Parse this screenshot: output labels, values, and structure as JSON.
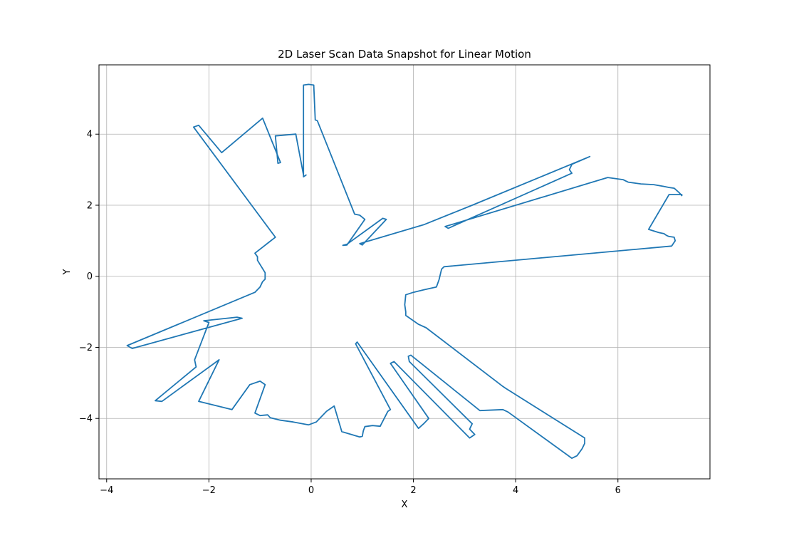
{
  "chart_data": {
    "type": "line",
    "title": "2D Laser Scan Data Snapshot for Linear Motion",
    "xlabel": "X",
    "ylabel": "Y",
    "xlim": [
      -4.15,
      7.8
    ],
    "ylim": [
      -5.7,
      5.95
    ],
    "xticks": [
      -4,
      -2,
      0,
      2,
      4,
      6
    ],
    "yticks": [
      -4,
      -2,
      0,
      2,
      4
    ],
    "grid": true,
    "series": [
      {
        "color": "#1f77b4",
        "points": [
          [
            -0.1,
            2.85
          ],
          [
            -0.15,
            2.8
          ],
          [
            -0.15,
            5.38
          ],
          [
            -0.05,
            5.4
          ],
          [
            0.05,
            5.38
          ],
          [
            0.08,
            4.4
          ],
          [
            0.12,
            4.38
          ],
          [
            0.85,
            1.75
          ],
          [
            0.95,
            1.72
          ],
          [
            1.05,
            1.6
          ],
          [
            0.7,
            0.88
          ],
          [
            0.62,
            0.87
          ],
          [
            0.7,
            0.9
          ],
          [
            1.4,
            1.63
          ],
          [
            1.47,
            1.6
          ],
          [
            1.0,
            0.88
          ],
          [
            0.95,
            0.92
          ],
          [
            2.2,
            1.45
          ],
          [
            3.15,
            2.0
          ],
          [
            5.45,
            3.37
          ],
          [
            5.1,
            3.15
          ],
          [
            5.05,
            3.0
          ],
          [
            5.1,
            2.9
          ],
          [
            2.68,
            1.35
          ],
          [
            2.62,
            1.4
          ],
          [
            5.8,
            2.78
          ],
          [
            5.95,
            2.75
          ],
          [
            6.1,
            2.72
          ],
          [
            6.2,
            2.65
          ],
          [
            6.35,
            2.62
          ],
          [
            6.45,
            2.6
          ],
          [
            6.7,
            2.58
          ],
          [
            6.9,
            2.53
          ],
          [
            7.0,
            2.5
          ],
          [
            7.1,
            2.48
          ],
          [
            7.2,
            2.35
          ],
          [
            7.25,
            2.27
          ],
          [
            7.25,
            2.3
          ],
          [
            7.0,
            2.3
          ],
          [
            6.6,
            1.32
          ],
          [
            6.8,
            1.23
          ],
          [
            6.9,
            1.2
          ],
          [
            6.95,
            1.15
          ],
          [
            7.0,
            1.12
          ],
          [
            7.1,
            1.1
          ],
          [
            7.12,
            1.0
          ],
          [
            7.05,
            0.85
          ],
          [
            2.6,
            0.27
          ],
          [
            2.55,
            0.2
          ],
          [
            2.5,
            -0.1
          ],
          [
            2.45,
            -0.3
          ],
          [
            2.2,
            -0.38
          ],
          [
            2.0,
            -0.45
          ],
          [
            1.85,
            -0.52
          ],
          [
            1.83,
            -0.8
          ],
          [
            1.85,
            -1.0
          ],
          [
            1.85,
            -1.1
          ],
          [
            2.1,
            -1.35
          ],
          [
            2.25,
            -1.45
          ],
          [
            3.75,
            -3.1
          ],
          [
            3.8,
            -3.15
          ],
          [
            5.35,
            -4.55
          ],
          [
            5.35,
            -4.7
          ],
          [
            5.3,
            -4.85
          ],
          [
            5.25,
            -4.95
          ],
          [
            5.2,
            -5.05
          ],
          [
            5.1,
            -5.12
          ],
          [
            3.85,
            -3.82
          ],
          [
            3.75,
            -3.75
          ],
          [
            3.3,
            -3.78
          ],
          [
            1.95,
            -2.22
          ],
          [
            1.9,
            -2.25
          ],
          [
            1.92,
            -2.4
          ],
          [
            3.15,
            -4.15
          ],
          [
            3.1,
            -4.3
          ],
          [
            3.2,
            -4.45
          ],
          [
            3.1,
            -4.55
          ],
          [
            1.62,
            -2.4
          ],
          [
            1.55,
            -2.45
          ],
          [
            2.3,
            -4.0
          ],
          [
            2.2,
            -4.15
          ],
          [
            2.1,
            -4.28
          ],
          [
            0.9,
            -1.85
          ],
          [
            0.87,
            -1.9
          ],
          [
            1.55,
            -3.75
          ],
          [
            1.5,
            -3.8
          ],
          [
            1.35,
            -4.22
          ],
          [
            1.2,
            -4.2
          ],
          [
            1.05,
            -4.23
          ],
          [
            1.02,
            -4.35
          ],
          [
            1.0,
            -4.5
          ],
          [
            0.95,
            -4.52
          ],
          [
            0.6,
            -4.37
          ],
          [
            0.45,
            -3.65
          ],
          [
            0.3,
            -3.8
          ],
          [
            0.1,
            -4.1
          ],
          [
            -0.05,
            -4.18
          ],
          [
            -0.35,
            -4.1
          ],
          [
            -0.6,
            -4.05
          ],
          [
            -0.8,
            -3.98
          ],
          [
            -0.85,
            -3.9
          ],
          [
            -1.0,
            -3.92
          ],
          [
            -1.1,
            -3.85
          ],
          [
            -0.9,
            -3.05
          ],
          [
            -1.0,
            -2.95
          ],
          [
            -1.2,
            -3.05
          ],
          [
            -1.55,
            -3.75
          ],
          [
            -2.2,
            -3.52
          ],
          [
            -1.8,
            -2.35
          ],
          [
            -2.92,
            -3.52
          ],
          [
            -3.05,
            -3.5
          ],
          [
            -2.25,
            -2.55
          ],
          [
            -2.28,
            -2.35
          ],
          [
            -2.0,
            -1.3
          ],
          [
            -2.1,
            -1.25
          ],
          [
            -1.45,
            -1.15
          ],
          [
            -1.35,
            -1.18
          ],
          [
            -3.5,
            -2.03
          ],
          [
            -3.6,
            -1.95
          ],
          [
            -1.1,
            -0.45
          ],
          [
            -1.0,
            -0.3
          ],
          [
            -0.95,
            -0.15
          ],
          [
            -0.9,
            -0.08
          ],
          [
            -0.9,
            0.1
          ],
          [
            -1.05,
            0.45
          ],
          [
            -1.05,
            0.55
          ],
          [
            -1.1,
            0.65
          ],
          [
            -0.7,
            1.1
          ],
          [
            -2.3,
            4.2
          ],
          [
            -2.2,
            4.25
          ],
          [
            -1.75,
            3.48
          ],
          [
            -0.95,
            4.45
          ],
          [
            -0.6,
            3.2
          ],
          [
            -0.65,
            3.18
          ],
          [
            -0.7,
            3.95
          ],
          [
            -0.3,
            4.0
          ],
          [
            -0.15,
            2.85
          ]
        ]
      }
    ]
  }
}
